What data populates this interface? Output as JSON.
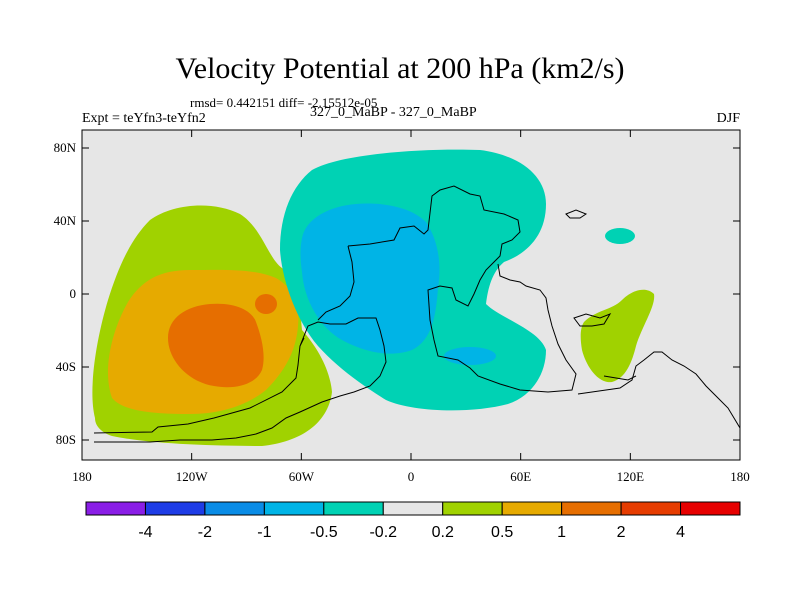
{
  "title": "Velocity Potential at 200 hPa (km2/s)",
  "stats": "rmsd= 0.442151 diff= -2.15512e-05",
  "expt": "Expt = teYfn3-teYfn2",
  "cases": "327_0_MaBP - 327_0_MaBP",
  "season": "DJF",
  "colors": {
    "background": "#e6e6e6",
    "neg05": "#00d2b4",
    "neg1": "#00b4e6",
    "pos02": "#a0d200",
    "pos05": "#e6aa00",
    "pos1": "#e66e00"
  },
  "map": {
    "lat_ticks": [
      "80N",
      "40N",
      "0",
      "40S",
      "80S"
    ],
    "lon_ticks": [
      "180",
      "120W",
      "60W",
      "0",
      "60E",
      "120E",
      "180"
    ]
  },
  "colorbar": {
    "colors": [
      "#8a1ee6",
      "#1e3ce6",
      "#0a8ce6",
      "#00b4e6",
      "#00d2b4",
      "#e6e6e6",
      "#a0d200",
      "#e6aa00",
      "#e66e00",
      "#e63c00",
      "#e60000"
    ],
    "labels": [
      "-4",
      "-2",
      "-1",
      "-0.5",
      "-0.2",
      "0.2",
      "0.5",
      "1",
      "2",
      "4"
    ]
  }
}
